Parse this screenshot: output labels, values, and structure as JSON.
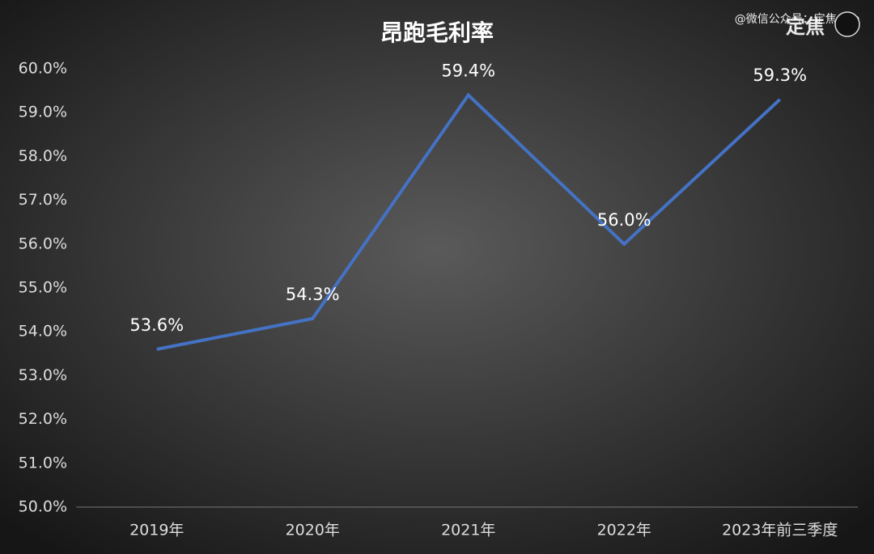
{
  "chart_data": {
    "type": "line",
    "title": "昂跑毛利率",
    "watermark": "@微信公众号：定焦One",
    "logo": "定焦",
    "categories": [
      "2019年",
      "2020年",
      "2021年",
      "2022年",
      "2023年前三季度"
    ],
    "series": [
      {
        "name": "毛利率",
        "color": "#4472c4",
        "values": [
          53.6,
          54.3,
          59.4,
          56.0,
          59.3
        ],
        "value_labels": [
          "53.6%",
          "54.3%",
          "59.4%",
          "56.0%",
          "59.3%"
        ]
      }
    ],
    "ylim": [
      50,
      60
    ],
    "yticks": [
      {
        "value": 50,
        "label": "50.0%"
      },
      {
        "value": 51,
        "label": "51.0%"
      },
      {
        "value": 52,
        "label": "52.0%"
      },
      {
        "value": 53,
        "label": "53.0%"
      },
      {
        "value": 54,
        "label": "54.0%"
      },
      {
        "value": 55,
        "label": "55.0%"
      },
      {
        "value": 56,
        "label": "56.0%"
      },
      {
        "value": 57,
        "label": "57.0%"
      },
      {
        "value": 58,
        "label": "58.0%"
      },
      {
        "value": 59,
        "label": "59.0%"
      },
      {
        "value": 60,
        "label": "60.0%"
      }
    ],
    "grid": false
  }
}
